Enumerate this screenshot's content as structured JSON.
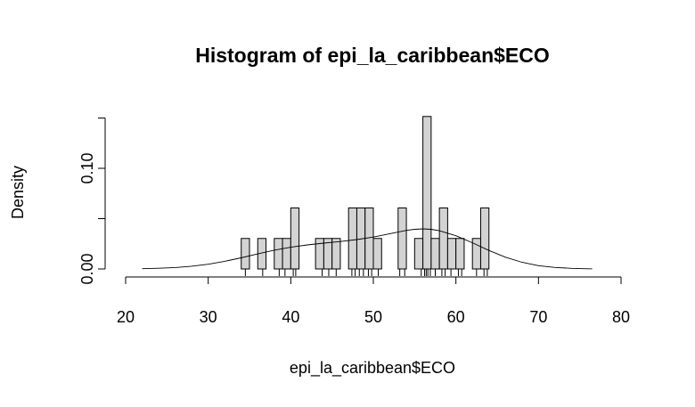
{
  "chart_data": {
    "type": "histogram",
    "title": "Histogram of epi_la_caribbean$ECO",
    "xlabel": "epi_la_caribbean$ECO",
    "ylabel": "Density",
    "xlim": [
      20,
      80
    ],
    "ylim": [
      0,
      0.16
    ],
    "x_ticks": [
      20,
      30,
      40,
      50,
      60,
      70,
      80
    ],
    "y_ticks": [
      0.0,
      0.05,
      0.1,
      0.15
    ],
    "y_tick_labels": [
      "0.00",
      "",
      "0.10",
      ""
    ],
    "bin_width": 1,
    "bins": [
      {
        "x0": 34,
        "x1": 35,
        "density": 0.0303
      },
      {
        "x0": 35,
        "x1": 36,
        "density": 0
      },
      {
        "x0": 36,
        "x1": 37,
        "density": 0.0303
      },
      {
        "x0": 37,
        "x1": 38,
        "density": 0
      },
      {
        "x0": 38,
        "x1": 39,
        "density": 0.0303
      },
      {
        "x0": 39,
        "x1": 40,
        "density": 0.0303
      },
      {
        "x0": 40,
        "x1": 41,
        "density": 0.0606
      },
      {
        "x0": 41,
        "x1": 42,
        "density": 0
      },
      {
        "x0": 42,
        "x1": 43,
        "density": 0
      },
      {
        "x0": 43,
        "x1": 44,
        "density": 0.0303
      },
      {
        "x0": 44,
        "x1": 45,
        "density": 0.0303
      },
      {
        "x0": 45,
        "x1": 46,
        "density": 0.0303
      },
      {
        "x0": 46,
        "x1": 47,
        "density": 0
      },
      {
        "x0": 47,
        "x1": 48,
        "density": 0.0606
      },
      {
        "x0": 48,
        "x1": 49,
        "density": 0.0606
      },
      {
        "x0": 49,
        "x1": 50,
        "density": 0.0606
      },
      {
        "x0": 50,
        "x1": 51,
        "density": 0.0303
      },
      {
        "x0": 51,
        "x1": 52,
        "density": 0
      },
      {
        "x0": 52,
        "x1": 53,
        "density": 0
      },
      {
        "x0": 53,
        "x1": 54,
        "density": 0.0606
      },
      {
        "x0": 54,
        "x1": 55,
        "density": 0
      },
      {
        "x0": 55,
        "x1": 56,
        "density": 0.0303
      },
      {
        "x0": 56,
        "x1": 57,
        "density": 0.1515
      },
      {
        "x0": 57,
        "x1": 58,
        "density": 0.0303
      },
      {
        "x0": 58,
        "x1": 59,
        "density": 0.0606
      },
      {
        "x0": 59,
        "x1": 60,
        "density": 0.0303
      },
      {
        "x0": 60,
        "x1": 61,
        "density": 0.0303
      },
      {
        "x0": 61,
        "x1": 62,
        "density": 0
      },
      {
        "x0": 62,
        "x1": 63,
        "density": 0.0303
      },
      {
        "x0": 63,
        "x1": 64,
        "density": 0.0606
      }
    ],
    "density_curve": {
      "x": [
        22,
        24,
        26,
        28,
        30,
        32,
        34,
        36,
        38,
        40,
        42,
        44,
        46,
        48,
        50,
        52,
        54,
        55,
        56,
        57,
        58,
        60,
        62,
        64,
        66,
        68,
        70,
        72,
        74,
        76,
        76.5
      ],
      "y": [
        0.0003,
        0.0007,
        0.0014,
        0.0027,
        0.0047,
        0.0076,
        0.0111,
        0.015,
        0.0187,
        0.0216,
        0.0239,
        0.0257,
        0.0273,
        0.0292,
        0.0317,
        0.035,
        0.0383,
        0.0394,
        0.0398,
        0.0394,
        0.038,
        0.033,
        0.026,
        0.0184,
        0.0117,
        0.0066,
        0.0033,
        0.0015,
        0.0006,
        0.0002,
        0.0002
      ]
    },
    "rug": [
      34.5,
      36.6,
      38.6,
      39.3,
      40.3,
      40.6,
      43.8,
      44.6,
      45.5,
      47.4,
      47.8,
      48.3,
      48.8,
      49.4,
      49.8,
      50.6,
      53.2,
      53.8,
      55.8,
      56.2,
      56.4,
      56.6,
      56.9,
      57.5,
      58.3,
      58.7,
      59.4,
      60.3,
      60.7,
      62.5,
      63.4,
      63.8
    ],
    "colors": {
      "bar_fill": "#d3d3d3",
      "stroke": "#000000",
      "background": "#ffffff"
    }
  }
}
